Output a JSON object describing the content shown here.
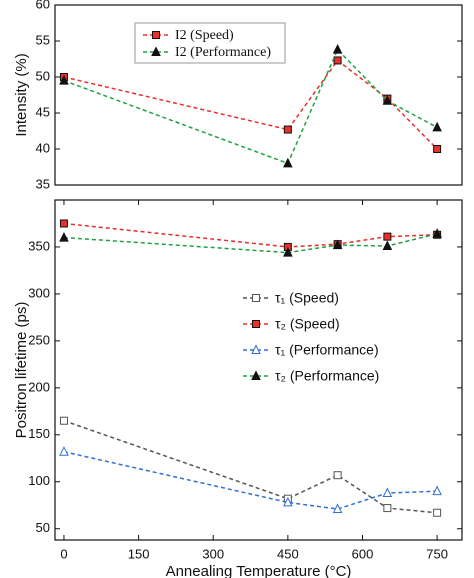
{
  "chart_data": [
    {
      "type": "line",
      "ylabel": "Intensity (%)",
      "xlim": [
        -18,
        800
      ],
      "ylim": [
        35,
        60
      ],
      "yticks": [
        35,
        40,
        45,
        50,
        55,
        60
      ],
      "legend": "upper center",
      "x": [
        0,
        450,
        550,
        650,
        750
      ],
      "series": [
        {
          "name": "I2 (Speed)",
          "color": "#e8302c",
          "marker": "square",
          "filled": true,
          "values": [
            50,
            42.7,
            52.3,
            47,
            40
          ]
        },
        {
          "name": "I2 (Performance)",
          "color": "#1fa040",
          "marker": "triangle",
          "filled": true,
          "values": [
            49.5,
            38,
            53.8,
            46.7,
            43
          ]
        }
      ]
    },
    {
      "type": "line",
      "ylabel": "Positron lifetime (ps)",
      "xlabel": "Annealing Temperature (°C)",
      "xlim": [
        -18,
        800
      ],
      "ylim": [
        38,
        400
      ],
      "xticks": [
        0,
        150,
        300,
        450,
        600,
        750
      ],
      "yticks": [
        50,
        100,
        150,
        200,
        250,
        300,
        350
      ],
      "legend": "center right",
      "x": [
        0,
        450,
        550,
        650,
        750
      ],
      "series": [
        {
          "name": "τ₁ (Speed)",
          "color": "#555555",
          "marker": "square",
          "filled": false,
          "values": [
            165,
            82,
            107,
            72,
            67
          ]
        },
        {
          "name": "τ₂ (Speed)",
          "color": "#e8302c",
          "marker": "square",
          "filled": true,
          "values": [
            375,
            350,
            353,
            361,
            363
          ]
        },
        {
          "name": "τ₁ (Performance)",
          "color": "#2f6fd6",
          "marker": "triangle",
          "filled": false,
          "values": [
            132,
            78,
            71,
            88,
            90
          ]
        },
        {
          "name": "τ₂ (Performance)",
          "color": "#1fa040",
          "marker": "triangle",
          "filled": true,
          "values": [
            360,
            344,
            352,
            351,
            364
          ]
        }
      ]
    }
  ]
}
